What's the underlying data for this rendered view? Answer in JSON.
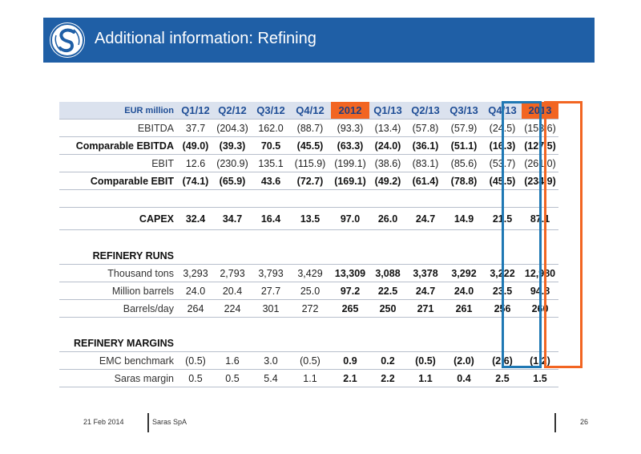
{
  "header": {
    "title": "Additional information: Refining"
  },
  "table": {
    "unit_label": "EUR million",
    "columns": [
      "Q1/12",
      "Q2/12",
      "Q3/12",
      "Q4/12",
      "2012",
      "Q1/13",
      "Q2/13",
      "Q3/13",
      "Q4/13",
      "2013"
    ],
    "rows": [
      {
        "label": "EBITDA",
        "values": [
          "37.7",
          "(204.3)",
          "162.0",
          "(88.7)",
          "(93.3)",
          "(13.4)",
          "(57.8)",
          "(57.9)",
          "(24.5)",
          "(153.6)"
        ]
      },
      {
        "label": "Comparable EBITDA",
        "values": [
          "(49.0)",
          "(39.3)",
          "70.5",
          "(45.5)",
          "(63.3)",
          "(24.0)",
          "(36.1)",
          "(51.1)",
          "(16.3)",
          "(127.5)"
        ]
      },
      {
        "label": "EBIT",
        "values": [
          "12.6",
          "(230.9)",
          "135.1",
          "(115.9)",
          "(199.1)",
          "(38.6)",
          "(83.1)",
          "(85.6)",
          "(53.7)",
          "(261.0)"
        ]
      },
      {
        "label": "Comparable EBIT",
        "values": [
          "(74.1)",
          "(65.9)",
          "43.6",
          "(72.7)",
          "(169.1)",
          "(49.2)",
          "(61.4)",
          "(78.8)",
          "(45.5)",
          "(234.9)"
        ]
      },
      {
        "label": "CAPEX",
        "values": [
          "32.4",
          "34.7",
          "16.4",
          "13.5",
          "97.0",
          "26.0",
          "24.7",
          "14.9",
          "21.5",
          "87.1"
        ]
      },
      {
        "label": "REFINERY RUNS"
      },
      {
        "label": "Thousand tons",
        "values": [
          "3,293",
          "2,793",
          "3,793",
          "3,429",
          "13,309",
          "3,088",
          "3,378",
          "3,292",
          "3,222",
          "12,980"
        ]
      },
      {
        "label": "Million barrels",
        "values": [
          "24.0",
          "20.4",
          "27.7",
          "25.0",
          "97.2",
          "22.5",
          "24.7",
          "24.0",
          "23.5",
          "94.8"
        ]
      },
      {
        "label": "Barrels/day",
        "values": [
          "264",
          "224",
          "301",
          "272",
          "265",
          "250",
          "271",
          "261",
          "256",
          "260"
        ]
      },
      {
        "label": "REFINERY MARGINS"
      },
      {
        "label": "EMC benchmark",
        "values": [
          "(0.5)",
          "1.6",
          "3.0",
          "(0.5)",
          "0.9",
          "0.2",
          "(0.5)",
          "(2.0)",
          "(2.6)",
          "(1.2)"
        ]
      },
      {
        "label": "Saras margin",
        "values": [
          "0.5",
          "0.5",
          "5.4",
          "1.1",
          "2.1",
          "2.2",
          "1.1",
          "0.4",
          "2.5",
          "1.5"
        ]
      }
    ]
  },
  "footer": {
    "date": "21 Feb 2014",
    "company": "Saras SpA",
    "page": "26"
  },
  "colors": {
    "header_blue": "#1f5fa6",
    "highlight_orange": "#f26522",
    "highlight_blue": "#1f78b4"
  }
}
